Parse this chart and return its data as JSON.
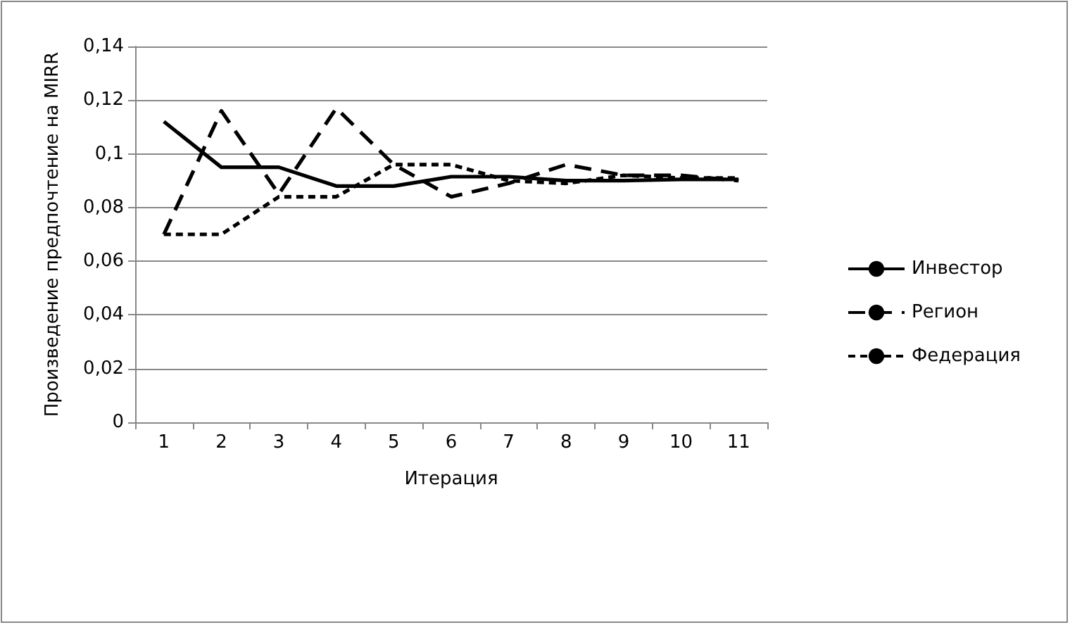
{
  "chart_data": {
    "type": "line",
    "xlabel": "Итерация",
    "ylabel": "Произведение предпочтение на MIRR",
    "categories": [
      "1",
      "2",
      "3",
      "4",
      "5",
      "6",
      "7",
      "8",
      "9",
      "10",
      "11"
    ],
    "series": [
      {
        "name": "Инвестор",
        "color": "#000000",
        "line_style": "solid",
        "values": [
          0.112,
          0.095,
          0.095,
          0.088,
          0.088,
          0.0915,
          0.0915,
          0.09,
          0.09,
          0.0905,
          0.0905
        ]
      },
      {
        "name": "Регион",
        "color": "#000000",
        "line_style": "dashed",
        "values": [
          0.07,
          0.116,
          0.085,
          0.117,
          0.096,
          0.084,
          0.089,
          0.096,
          0.092,
          0.092,
          0.09
        ]
      },
      {
        "name": "Федерация",
        "color": "#000000",
        "line_style": "dotted",
        "values": [
          0.07,
          0.07,
          0.084,
          0.084,
          0.096,
          0.096,
          0.09,
          0.089,
          0.092,
          0.091,
          0.091
        ]
      }
    ],
    "ylim": [
      0,
      0.14
    ],
    "yticks": [
      0,
      {
        "value": 0.02,
        "label": "0,02"
      },
      {
        "value": 0.04,
        "label": "0,04"
      },
      {
        "value": 0.06,
        "label": "0,06"
      },
      {
        "value": 0.08,
        "label": "0,08"
      },
      {
        "value": 0.1,
        "label": "0,1"
      },
      {
        "value": 0.12,
        "label": "0,12"
      },
      {
        "value": 0.14,
        "label": "0,14"
      }
    ],
    "grid": "y",
    "legend": "right",
    "marker": "none"
  }
}
